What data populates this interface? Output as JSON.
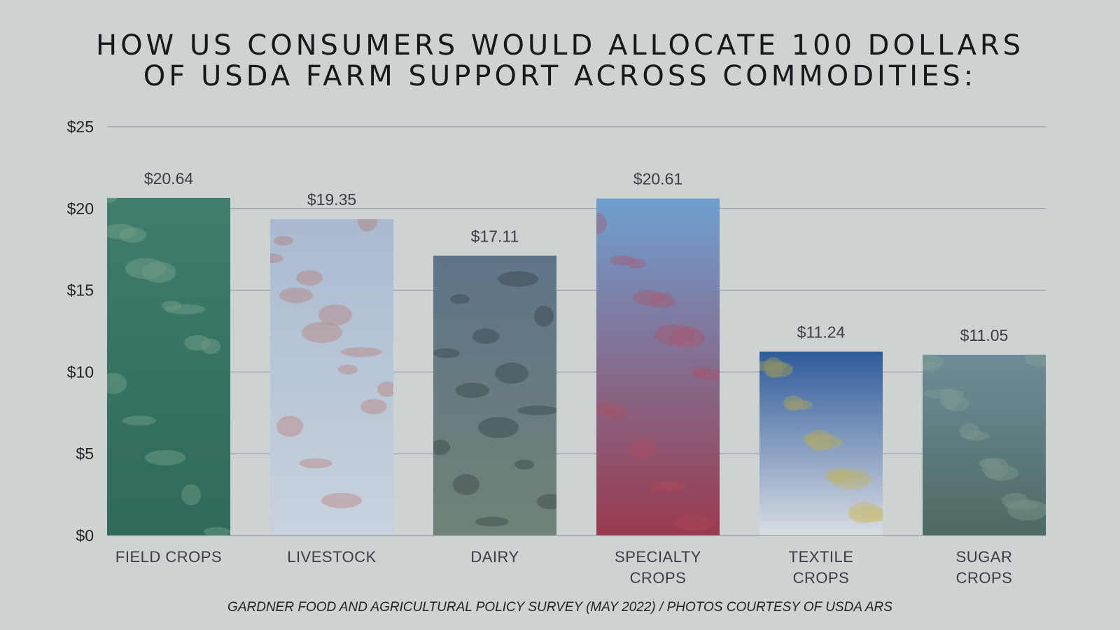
{
  "title_line1": "HOW US CONSUMERS WOULD ALLOCATE 100 DOLLARS",
  "title_line2": "OF USDA FARM SUPPORT ACROSS COMMODITIES:",
  "footer": "GARDNER FOOD AND AGRICULTURAL POLICY SURVEY (MAY 2022) / PHOTOS COURTESY OF USDA ARS",
  "chart_data": {
    "type": "bar",
    "title": "HOW US CONSUMERS WOULD ALLOCATE 100 DOLLARS OF USDA FARM SUPPORT ACROSS COMMODITIES:",
    "categories": [
      [
        "FIELD CROPS"
      ],
      [
        "LIVESTOCK"
      ],
      [
        "DAIRY"
      ],
      [
        "SPECIALTY",
        "CROPS"
      ],
      [
        "TEXTILE",
        "CROPS"
      ],
      [
        "SUGAR",
        "CROPS"
      ]
    ],
    "values": [
      20.64,
      19.35,
      17.11,
      20.61,
      11.24,
      11.05
    ],
    "value_labels": [
      "$20.64",
      "$19.35",
      "$17.11",
      "$20.61",
      "$11.24",
      "$11.05"
    ],
    "ylim": [
      0,
      25
    ],
    "yticks": [
      0,
      5,
      10,
      15,
      20,
      25
    ],
    "ytick_labels": [
      "$0",
      "$5",
      "$10",
      "$15",
      "$20",
      "$25"
    ],
    "grid": true,
    "bar_styles": [
      {
        "image": "rice-plants-photo",
        "top": "#3f7d6d",
        "bottom": "#2f6a5a",
        "accent": "#8fb59a"
      },
      {
        "image": "turkeys-photo",
        "top": "#a9bad0",
        "bottom": "#c9d2de",
        "accent": "#b86a5e"
      },
      {
        "image": "dairy-cows-photo",
        "top": "#5f7488",
        "bottom": "#6f8377",
        "accent": "#2a3036"
      },
      {
        "image": "cranberry-harvest-photo",
        "top": "#6f9fcf",
        "bottom": "#9a3a4e",
        "accent": "#b84a5c"
      },
      {
        "image": "cotton-harvest-photo",
        "top": "#2f5b9a",
        "bottom": "#d9dde4",
        "accent": "#c9b33a"
      },
      {
        "image": "sugarcane-photo",
        "top": "#6e8c97",
        "bottom": "#4d6a63",
        "accent": "#8aa79a"
      }
    ]
  }
}
